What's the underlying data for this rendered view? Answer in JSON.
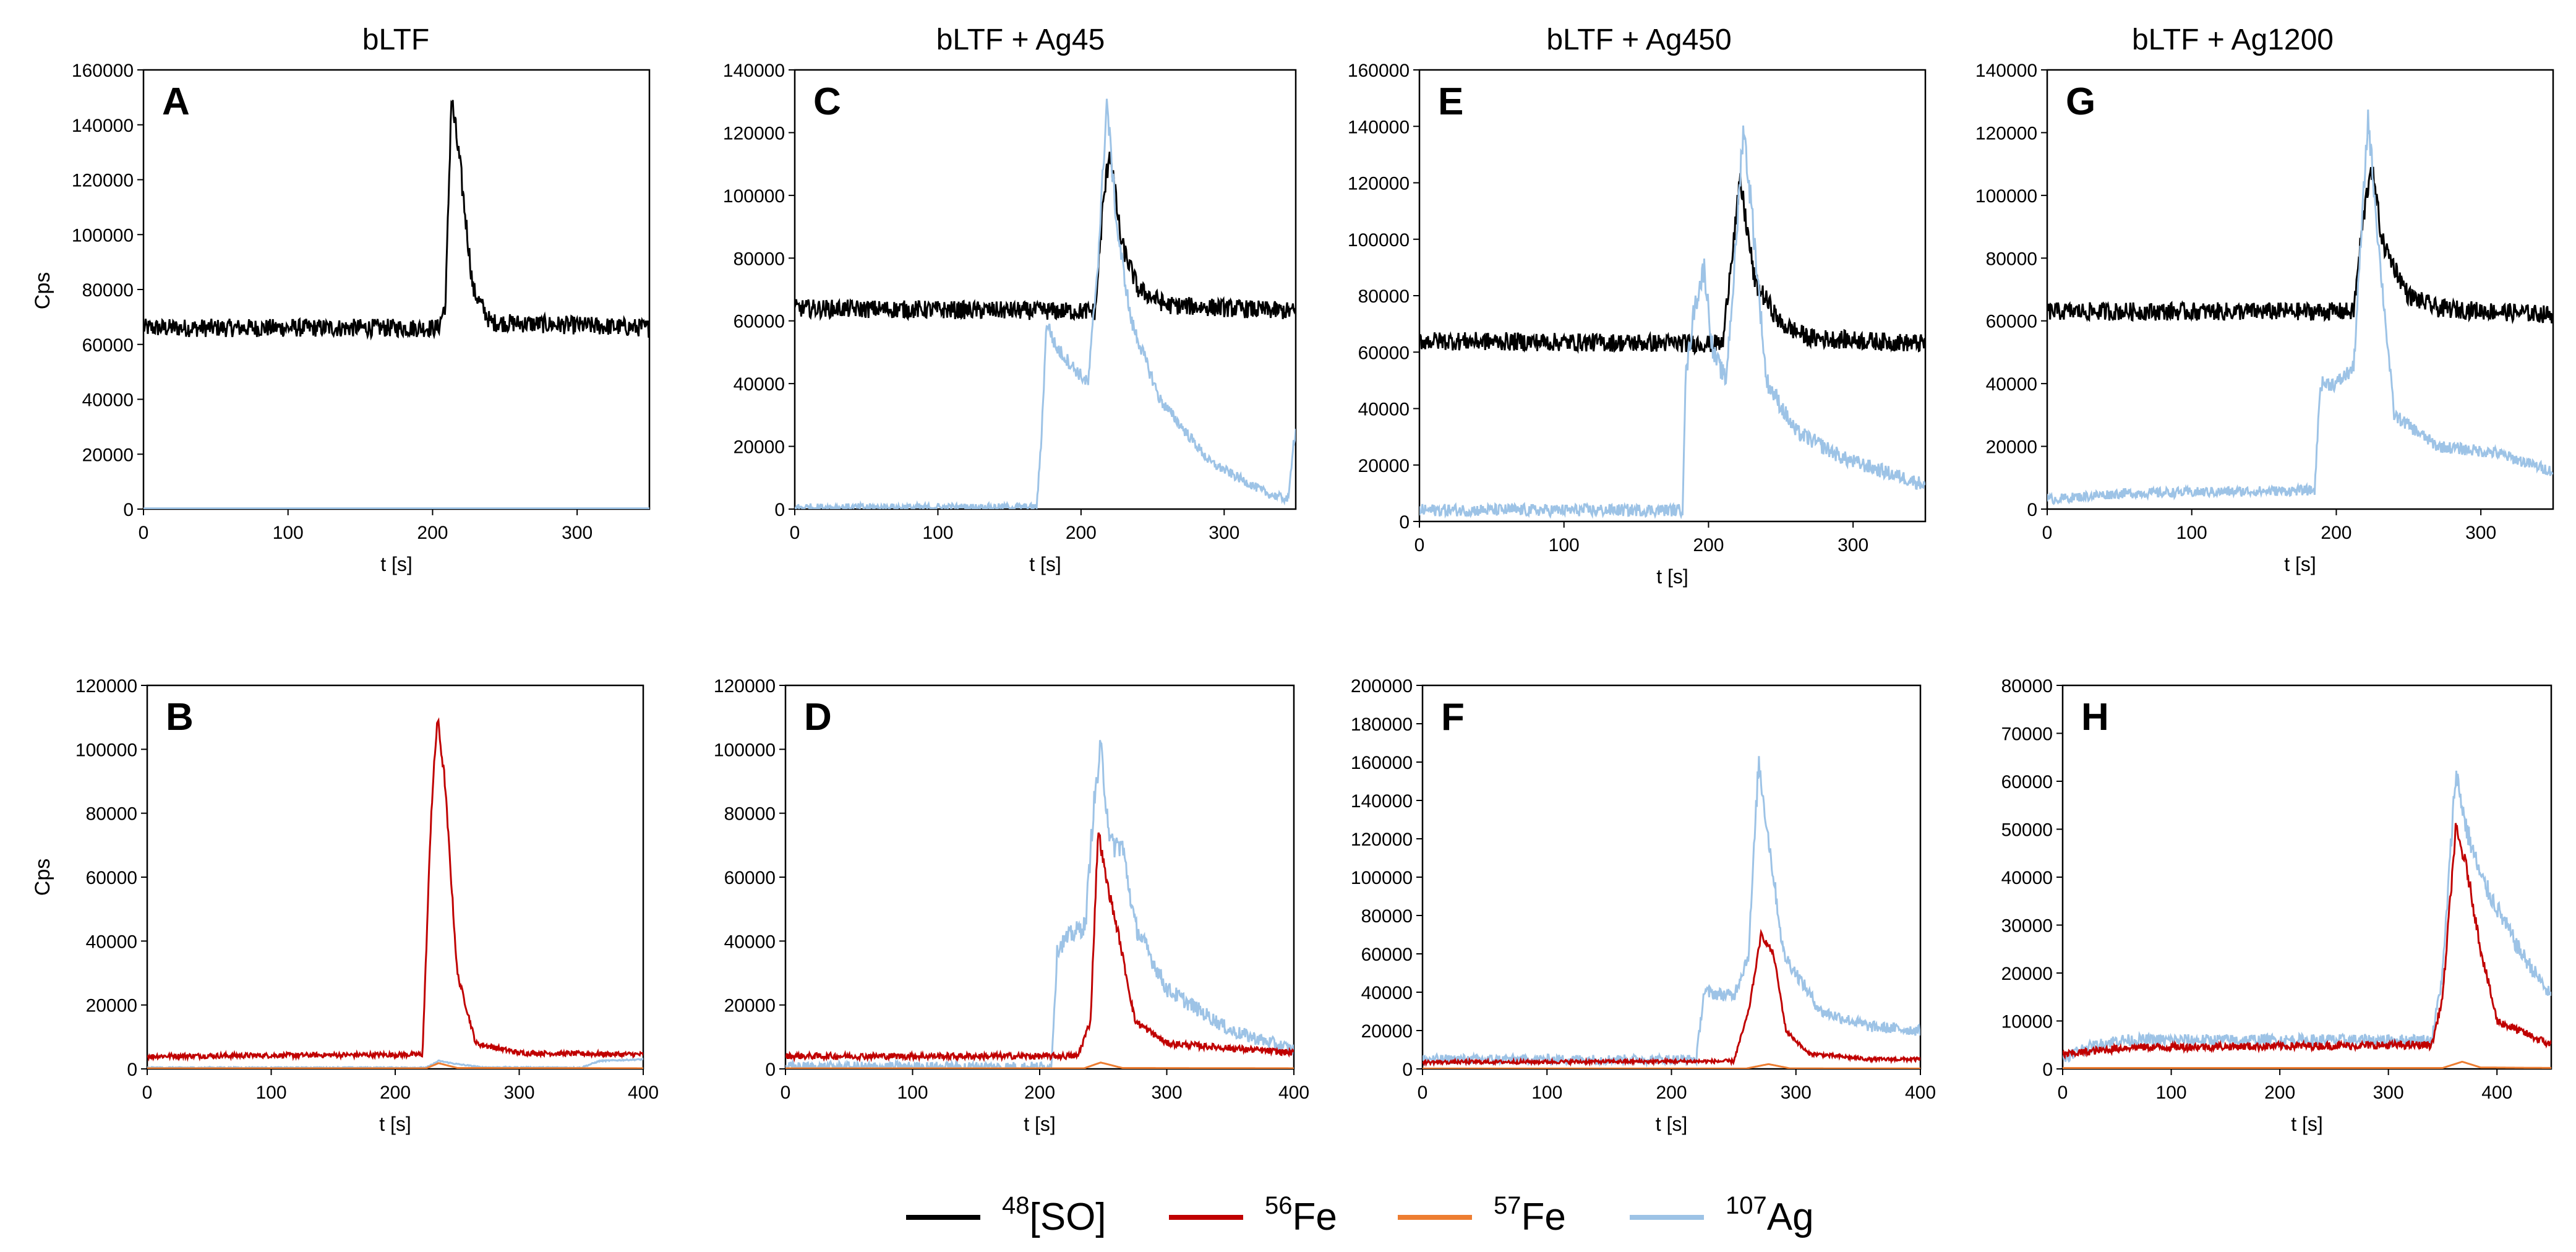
{
  "legend": {
    "entries": [
      {
        "sup": "48",
        "label": "[SO]",
        "color": "#000000"
      },
      {
        "sup": "56",
        "label": "Fe",
        "color": "#c00000"
      },
      {
        "sup": "57",
        "label": "Fe",
        "color": "#ed7d31"
      },
      {
        "sup": "107",
        "label": "Ag",
        "color": "#9dc3e6"
      }
    ]
  },
  "chart_data": [
    {
      "type": "line",
      "panel": "A",
      "column_title": "bLTF",
      "xlabel": "t [s]",
      "ylabel": "Cps",
      "xlim": [
        0,
        350
      ],
      "ylim": [
        0,
        160000
      ],
      "xticks": [
        0,
        100,
        200,
        300
      ],
      "yticks": [
        0,
        20000,
        40000,
        60000,
        80000,
        100000,
        120000,
        140000,
        160000
      ],
      "series": [
        {
          "name": "48[SO]",
          "color": "#000000",
          "noise": 3000,
          "points": [
            [
              0,
              66000
            ],
            [
              204,
              66000
            ],
            [
              209,
              75000
            ],
            [
              213,
              150000
            ],
            [
              219,
              125000
            ],
            [
              228,
              80000
            ],
            [
              240,
              68000
            ],
            [
              350,
              66000
            ]
          ]
        },
        {
          "name": "107Ag",
          "color": "#9dc3e6",
          "noise": 0,
          "points": [
            [
              0,
              300
            ],
            [
              350,
              300
            ]
          ]
        }
      ]
    },
    {
      "type": "line",
      "panel": "B",
      "column_title": "bLTF",
      "xlabel": "t [s]",
      "ylabel": "Cps",
      "xlim": [
        0,
        400
      ],
      "ylim": [
        0,
        120000
      ],
      "xticks": [
        0,
        100,
        200,
        300,
        400
      ],
      "yticks": [
        0,
        20000,
        40000,
        60000,
        80000,
        100000,
        120000
      ],
      "series": [
        {
          "name": "56Fe",
          "color": "#c00000",
          "noise": 1200,
          "points": [
            [
              0,
              4000
            ],
            [
              222,
              4500
            ],
            [
              229,
              80000
            ],
            [
              234,
              110000
            ],
            [
              240,
              90000
            ],
            [
              250,
              30000
            ],
            [
              265,
              8000
            ],
            [
              300,
              5000
            ],
            [
              400,
              4500
            ]
          ]
        },
        {
          "name": "107Ag",
          "color": "#9dc3e6",
          "noise": 300,
          "points": [
            [
              0,
              400
            ],
            [
              225,
              400
            ],
            [
              235,
              2500
            ],
            [
              250,
              1500
            ],
            [
              270,
              500
            ],
            [
              350,
              400
            ],
            [
              365,
              2500
            ],
            [
              400,
              3000
            ]
          ]
        },
        {
          "name": "57Fe",
          "color": "#ed7d31",
          "noise": 0,
          "points": [
            [
              0,
              200
            ],
            [
              225,
              200
            ],
            [
              235,
              1800
            ],
            [
              250,
              300
            ],
            [
              400,
              200
            ]
          ]
        }
      ]
    },
    {
      "type": "line",
      "panel": "C",
      "column_title": "bLTF + Ag45",
      "xlabel": "t [s]",
      "ylabel": "",
      "xlim": [
        0,
        350
      ],
      "ylim": [
        0,
        140000
      ],
      "xticks": [
        0,
        100,
        200,
        300
      ],
      "yticks": [
        0,
        20000,
        40000,
        60000,
        80000,
        100000,
        120000,
        140000
      ],
      "series": [
        {
          "name": "48[SO]",
          "color": "#000000",
          "noise": 2500,
          "points": [
            [
              0,
              64000
            ],
            [
              210,
              63000
            ],
            [
              215,
              95000
            ],
            [
              220,
              115000
            ],
            [
              228,
              85000
            ],
            [
              240,
              70000
            ],
            [
              260,
              65000
            ],
            [
              350,
              63000
            ]
          ]
        },
        {
          "name": "107Ag",
          "color": "#9dc3e6",
          "noise": 2200,
          "points": [
            [
              0,
              500
            ],
            [
              169,
              500
            ],
            [
              172,
              20000
            ],
            [
              176,
              60000
            ],
            [
              182,
              52000
            ],
            [
              195,
              45000
            ],
            [
              205,
              40000
            ],
            [
              212,
              80000
            ],
            [
              218,
              130000
            ],
            [
              225,
              90000
            ],
            [
              235,
              60000
            ],
            [
              255,
              35000
            ],
            [
              290,
              15000
            ],
            [
              330,
              5000
            ],
            [
              345,
              3000
            ],
            [
              348,
              20000
            ],
            [
              350,
              25000
            ]
          ]
        }
      ]
    },
    {
      "type": "line",
      "panel": "D",
      "column_title": "bLTF + Ag45",
      "xlabel": "t [s]",
      "ylabel": "",
      "xlim": [
        0,
        400
      ],
      "ylim": [
        0,
        120000
      ],
      "xticks": [
        0,
        100,
        200,
        300,
        400
      ],
      "yticks": [
        0,
        20000,
        40000,
        60000,
        80000,
        100000,
        120000
      ],
      "series": [
        {
          "name": "107Ag",
          "color": "#9dc3e6",
          "noise": 3000,
          "points": [
            [
              0,
              500
            ],
            [
              209,
              500
            ],
            [
              214,
              38000
            ],
            [
              225,
              42000
            ],
            [
              236,
              45000
            ],
            [
              242,
              80000
            ],
            [
              248,
              100000
            ],
            [
              256,
              70000
            ],
            [
              265,
              70000
            ],
            [
              275,
              45000
            ],
            [
              300,
              25000
            ],
            [
              350,
              12000
            ],
            [
              400,
              6000
            ]
          ]
        },
        {
          "name": "56Fe",
          "color": "#c00000",
          "noise": 1500,
          "points": [
            [
              0,
              4000
            ],
            [
              230,
              4000
            ],
            [
              240,
              15000
            ],
            [
              246,
              75000
            ],
            [
              252,
              60000
            ],
            [
              262,
              42000
            ],
            [
              275,
              15000
            ],
            [
              300,
              8000
            ],
            [
              400,
              5000
            ]
          ]
        },
        {
          "name": "57Fe",
          "color": "#ed7d31",
          "noise": 0,
          "points": [
            [
              0,
              200
            ],
            [
              235,
              200
            ],
            [
              248,
              2000
            ],
            [
              265,
              300
            ],
            [
              400,
              200
            ]
          ]
        }
      ]
    },
    {
      "type": "line",
      "panel": "E",
      "column_title": "bLTF + Ag450",
      "xlabel": "t [s]",
      "ylabel": "",
      "xlim": [
        0,
        350
      ],
      "ylim": [
        0,
        160000
      ],
      "xticks": [
        0,
        100,
        200,
        300
      ],
      "yticks": [
        0,
        20000,
        40000,
        60000,
        80000,
        100000,
        120000,
        140000,
        160000
      ],
      "series": [
        {
          "name": "48[SO]",
          "color": "#000000",
          "noise": 3000,
          "points": [
            [
              0,
              64000
            ],
            [
              210,
              63000
            ],
            [
              215,
              90000
            ],
            [
              222,
              120000
            ],
            [
              232,
              85000
            ],
            [
              250,
              70000
            ],
            [
              270,
              65000
            ],
            [
              350,
              63000
            ]
          ]
        },
        {
          "name": "107Ag",
          "color": "#9dc3e6",
          "noise": 3500,
          "points": [
            [
              0,
              4000
            ],
            [
              182,
              4000
            ],
            [
              184,
              50000
            ],
            [
              190,
              75000
            ],
            [
              197,
              90000
            ],
            [
              203,
              60000
            ],
            [
              212,
              50000
            ],
            [
              218,
              90000
            ],
            [
              224,
              140000
            ],
            [
              230,
              110000
            ],
            [
              240,
              50000
            ],
            [
              260,
              32000
            ],
            [
              295,
              22000
            ],
            [
              350,
              13000
            ]
          ]
        }
      ]
    },
    {
      "type": "line",
      "panel": "F",
      "column_title": "bLTF + Ag450",
      "xlabel": "t [s]",
      "ylabel": "",
      "xlim": [
        0,
        400
      ],
      "ylim": [
        0,
        200000
      ],
      "xticks": [
        0,
        100,
        200,
        300,
        400
      ],
      "yticks": [
        0,
        20000,
        40000,
        60000,
        80000,
        100000,
        120000,
        140000,
        160000,
        180000,
        200000
      ],
      "series": [
        {
          "name": "107Ag",
          "color": "#9dc3e6",
          "noise": 4000,
          "points": [
            [
              0,
              5000
            ],
            [
              220,
              5000
            ],
            [
              226,
              40000
            ],
            [
              250,
              38000
            ],
            [
              262,
              60000
            ],
            [
              270,
              160000
            ],
            [
              278,
              120000
            ],
            [
              290,
              60000
            ],
            [
              320,
              30000
            ],
            [
              360,
              22000
            ],
            [
              400,
              20000
            ]
          ]
        },
        {
          "name": "56Fe",
          "color": "#c00000",
          "noise": 1500,
          "points": [
            [
              0,
              3500
            ],
            [
              250,
              4000
            ],
            [
              262,
              30000
            ],
            [
              272,
              70000
            ],
            [
              282,
              60000
            ],
            [
              292,
              20000
            ],
            [
              310,
              8000
            ],
            [
              360,
              5000
            ],
            [
              400,
              5000
            ]
          ]
        },
        {
          "name": "57Fe",
          "color": "#ed7d31",
          "noise": 0,
          "points": [
            [
              0,
              200
            ],
            [
              260,
              200
            ],
            [
              278,
              2500
            ],
            [
              295,
              300
            ],
            [
              400,
              200
            ]
          ]
        }
      ]
    },
    {
      "type": "line",
      "panel": "G",
      "column_title": "bLTF + Ag1200",
      "xlabel": "t [s]",
      "ylabel": "",
      "xlim": [
        0,
        350
      ],
      "ylim": [
        0,
        140000
      ],
      "xticks": [
        0,
        100,
        200,
        300
      ],
      "yticks": [
        0,
        20000,
        40000,
        60000,
        80000,
        100000,
        120000,
        140000
      ],
      "series": [
        {
          "name": "48[SO]",
          "color": "#000000",
          "noise": 2500,
          "points": [
            [
              0,
              63000
            ],
            [
              212,
              63000
            ],
            [
              218,
              90000
            ],
            [
              224,
              110000
            ],
            [
              232,
              85000
            ],
            [
              250,
              68000
            ],
            [
              270,
              64000
            ],
            [
              350,
              62000
            ]
          ]
        },
        {
          "name": "107Ag",
          "color": "#9dc3e6",
          "noise": 2500,
          "points": [
            [
              0,
              3000
            ],
            [
              50,
              5000
            ],
            [
              185,
              6000
            ],
            [
              189,
              40000
            ],
            [
              200,
              40000
            ],
            [
              212,
              45000
            ],
            [
              222,
              125000
            ],
            [
              230,
              80000
            ],
            [
              240,
              30000
            ],
            [
              270,
              20000
            ],
            [
              310,
              18000
            ],
            [
              350,
              12000
            ]
          ]
        }
      ]
    },
    {
      "type": "line",
      "panel": "H",
      "column_title": "bLTF + Ag1200",
      "xlabel": "t [s]",
      "ylabel": "",
      "xlim": [
        0,
        450
      ],
      "ylim": [
        0,
        80000
      ],
      "xticks": [
        0,
        100,
        200,
        300,
        400
      ],
      "yticks": [
        0,
        10000,
        20000,
        30000,
        40000,
        50000,
        60000,
        70000,
        80000
      ],
      "series": [
        {
          "name": "107Ag",
          "color": "#9dc3e6",
          "noise": 1800,
          "points": [
            [
              0,
              2000
            ],
            [
              15,
              4000
            ],
            [
              50,
              6000
            ],
            [
              340,
              6000
            ],
            [
              350,
              20000
            ],
            [
              362,
              62000
            ],
            [
              372,
              50000
            ],
            [
              385,
              40000
            ],
            [
              420,
              25000
            ],
            [
              450,
              15000
            ]
          ]
        },
        {
          "name": "56Fe",
          "color": "#c00000",
          "noise": 1200,
          "points": [
            [
              0,
              3000
            ],
            [
              60,
              4500
            ],
            [
              340,
              5000
            ],
            [
              350,
              15000
            ],
            [
              362,
              50000
            ],
            [
              372,
              42000
            ],
            [
              385,
              25000
            ],
            [
              400,
              10000
            ],
            [
              450,
              5000
            ]
          ]
        },
        {
          "name": "57Fe",
          "color": "#ed7d31",
          "noise": 0,
          "points": [
            [
              0,
              200
            ],
            [
              350,
              200
            ],
            [
              368,
              1500
            ],
            [
              385,
              300
            ],
            [
              450,
              200
            ]
          ]
        }
      ]
    }
  ]
}
